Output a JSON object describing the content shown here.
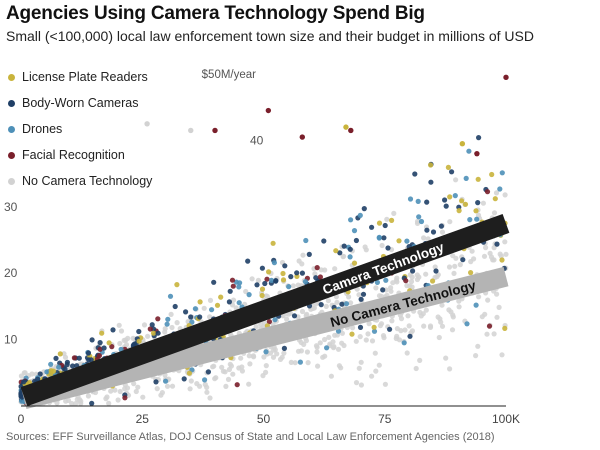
{
  "title": "Agencies Using Camera Technology Spend Big",
  "subtitle": "Small (<100,000) local law enforcement town size and their budget in millions of USD",
  "source": "Sources: EFF Surveillance Atlas, DOJ Census of State and Local Law Enforcement Agencies (2018)",
  "chart_data": {
    "type": "scatter",
    "x_ticks": [
      "0",
      "25",
      "50",
      "75",
      "100K"
    ],
    "y_ticks": [
      "10",
      "20",
      "30",
      "40",
      "$50M/year"
    ],
    "xlim": [
      0,
      100
    ],
    "ylim": [
      0,
      50
    ],
    "grid": false,
    "legend_position": "top-left",
    "series": [
      {
        "name": "License Plate Readers",
        "color": "#c9b43c"
      },
      {
        "name": "Body-Worn Cameras",
        "color": "#1f3f66"
      },
      {
        "name": "Drones",
        "color": "#4e90b8"
      },
      {
        "name": "Facial Recognition",
        "color": "#7a1f2b"
      },
      {
        "name": "No Camera Technology",
        "color": "#d2d2d2"
      }
    ],
    "trend_lines": [
      {
        "name": "Camera Technology",
        "x": [
          0,
          100
        ],
        "y": [
          0.8,
          27.5
        ],
        "color": "#1e1e1e"
      },
      {
        "name": "No Camera Technology",
        "x": [
          0,
          100
        ],
        "y": [
          0.4,
          19.5
        ],
        "color": "#b4b4b4"
      }
    ],
    "highlight_points": [
      {
        "x": 100,
        "y": 49.5,
        "series": "Facial Recognition"
      },
      {
        "x": 51,
        "y": 44.5,
        "series": "Facial Recognition"
      },
      {
        "x": 40,
        "y": 41.5,
        "series": "Facial Recognition"
      },
      {
        "x": 67,
        "y": 42,
        "series": "License Plate Readers"
      },
      {
        "x": 68,
        "y": 41.5,
        "series": "Facial Recognition"
      },
      {
        "x": 91,
        "y": 39.5,
        "series": "License Plate Readers"
      },
      {
        "x": 94,
        "y": 38,
        "series": "Facial Recognition"
      },
      {
        "x": 58,
        "y": 40.5,
        "series": "Facial Recognition"
      },
      {
        "x": 26,
        "y": 42.5,
        "series": "No Camera Technology"
      },
      {
        "x": 35,
        "y": 41.5,
        "series": "No Camera Technology"
      }
    ]
  }
}
